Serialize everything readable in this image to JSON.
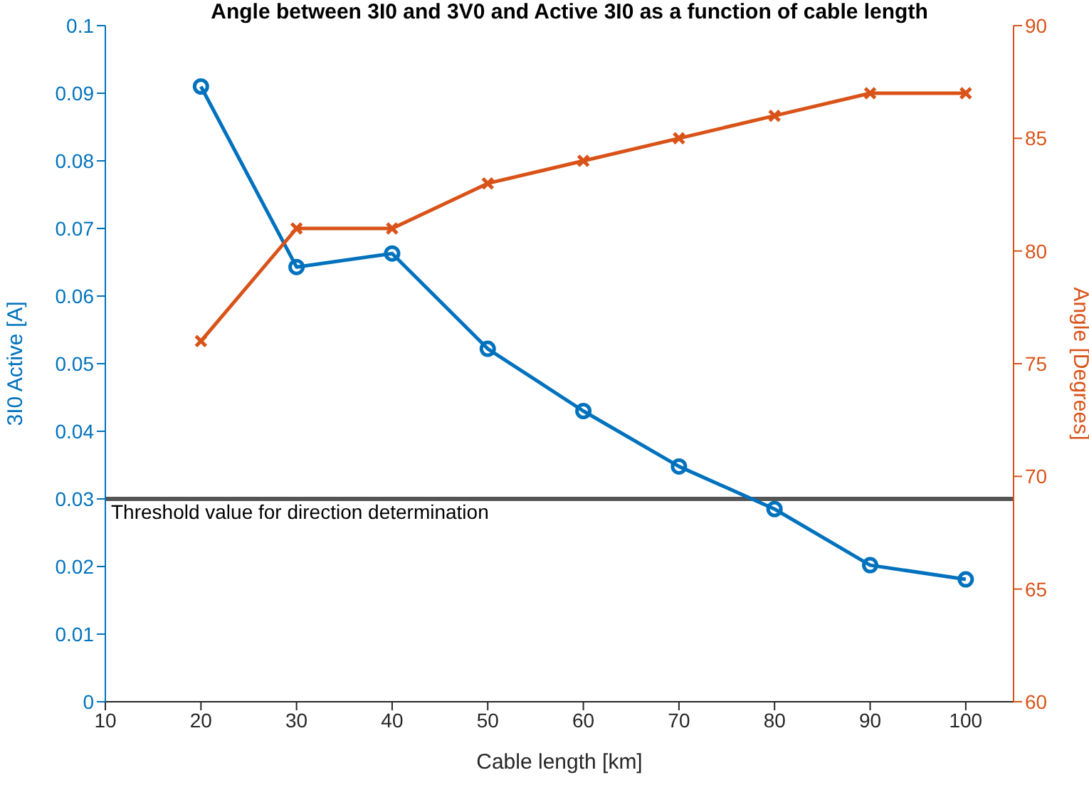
{
  "chart_data": {
    "type": "line",
    "title": "Angle between 3I0 and 3V0 and Active 3I0 as a function of cable length",
    "xlabel": "Cable length [km]",
    "ylabel": "3I0 Active [A]",
    "y2label": "Angle [Degrees]",
    "x": [
      20,
      30,
      40,
      50,
      60,
      70,
      80,
      90,
      100
    ],
    "series": [
      {
        "color": "#0072bd",
        "marker": "circle",
        "values": [
          0.091,
          0.0643,
          0.0663,
          0.0522,
          0.043,
          0.0348,
          0.0285,
          0.0202,
          0.0181
        ]
      },
      {
        "color": "#d95319",
        "marker": "cross",
        "axis": "y2",
        "values": [
          76,
          81,
          81,
          83,
          84,
          85,
          86,
          87,
          87
        ]
      }
    ],
    "xlim": [
      10,
      105
    ],
    "xticks": [
      10,
      20,
      30,
      40,
      50,
      60,
      70,
      80,
      90,
      100
    ],
    "ylim": [
      0,
      0.1
    ],
    "yticks": [
      0,
      0.01,
      0.02,
      0.03,
      0.04,
      0.05,
      0.06,
      0.07,
      0.08,
      0.09,
      0.1
    ],
    "y2lim": [
      60,
      90
    ],
    "y2ticks": [
      60,
      65,
      70,
      75,
      80,
      85,
      90
    ],
    "ref_lines": [
      {
        "axis": "y",
        "value": 0.03,
        "label": "Threshold value for direction determination",
        "color": "#555555",
        "line_style": "solid"
      }
    ],
    "grid": false,
    "legend": false,
    "line_style": "solid"
  }
}
